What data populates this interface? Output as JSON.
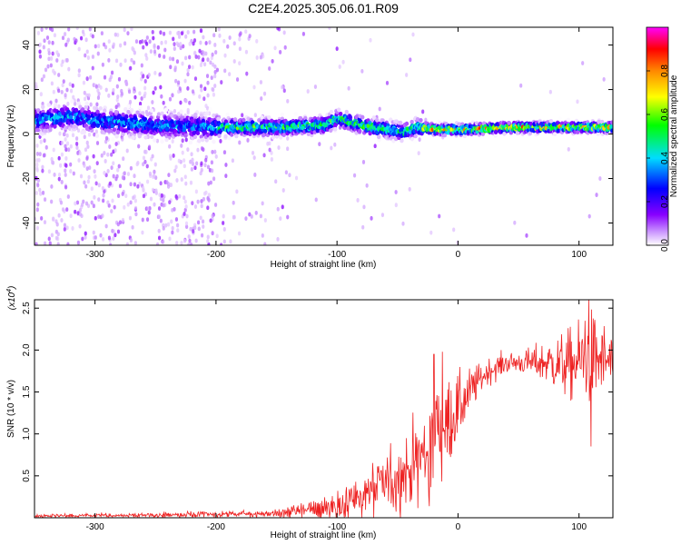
{
  "title": "C2E4.2025.305.06.01.R09",
  "chart_data": [
    {
      "type": "heatmap",
      "title": "C2E4.2025.305.06.01.R09",
      "xlabel": "Height of straight line (km)",
      "ylabel": "Frequency (Hz)",
      "xlim": [
        -350,
        128
      ],
      "ylim": [
        -50,
        48
      ],
      "xticks": [
        -300,
        -200,
        -100,
        0,
        100
      ],
      "xtick_labels": [
        "-300",
        "-200",
        "-100",
        "0",
        "100"
      ],
      "yticks": [
        40,
        20,
        0,
        -20,
        -40
      ],
      "ytick_labels": [
        "40",
        "20",
        "0",
        "-20",
        "-40"
      ],
      "ridge_frequency": [
        [
          -350,
          6
        ],
        [
          -320,
          8
        ],
        [
          -300,
          6
        ],
        [
          -250,
          4
        ],
        [
          -200,
          3
        ],
        [
          -150,
          3
        ],
        [
          -110,
          4
        ],
        [
          -100,
          7
        ],
        [
          -80,
          4
        ],
        [
          -60,
          2
        ],
        [
          -45,
          1
        ],
        [
          -35,
          3
        ],
        [
          -20,
          2
        ],
        [
          0,
          2
        ],
        [
          50,
          3
        ],
        [
          100,
          3
        ],
        [
          128,
          3
        ]
      ],
      "colorbar": {
        "label": "Normalized spectral amplitude",
        "range": [
          0,
          1
        ],
        "ticks": [
          0.0,
          0.2,
          0.4,
          0.6,
          0.8
        ],
        "tick_labels": [
          "0.0",
          "0.2",
          "0.4",
          "0.6",
          "0.8"
        ],
        "colors": [
          "#ffffff",
          "#9900ff",
          "#0000ff",
          "#00ffff",
          "#00ff00",
          "#ffff00",
          "#ff0000",
          "#ff00ff"
        ]
      }
    },
    {
      "type": "line",
      "xlabel": "Height of straight line (km)",
      "ylabel": "SNR (10 * v/v)",
      "y_multiplier_label": "(x10",
      "y_multiplier_exp": "4",
      "y_multiplier_close": ")",
      "xlim": [
        -350,
        128
      ],
      "ylim": [
        0,
        2.6
      ],
      "xticks": [
        -300,
        -200,
        -100,
        0,
        100
      ],
      "xtick_labels": [
        "-300",
        "-200",
        "-100",
        "0",
        "100"
      ],
      "yticks": [
        0.5,
        1.0,
        1.5,
        2.0,
        2.5
      ],
      "ytick_labels": [
        "0.5",
        "1.0",
        "1.5",
        "2.0",
        "2.5"
      ],
      "color": "#ee2222",
      "envelope": [
        [
          -350,
          0.02
        ],
        [
          -250,
          0.03
        ],
        [
          -150,
          0.05
        ],
        [
          -120,
          0.1
        ],
        [
          -100,
          0.15
        ],
        [
          -80,
          0.25
        ],
        [
          -60,
          0.4
        ],
        [
          -40,
          0.6
        ],
        [
          -25,
          0.8
        ],
        [
          -20,
          1.0
        ],
        [
          -15,
          1.15
        ],
        [
          -5,
          1.2
        ],
        [
          5,
          1.4
        ],
        [
          15,
          1.6
        ],
        [
          25,
          1.75
        ],
        [
          40,
          1.85
        ],
        [
          60,
          1.85
        ],
        [
          75,
          1.85
        ],
        [
          90,
          1.82
        ],
        [
          100,
          1.85
        ],
        [
          110,
          1.9
        ],
        [
          128,
          1.85
        ]
      ],
      "noise_sd": [
        [
          -350,
          0.01
        ],
        [
          -150,
          0.02
        ],
        [
          -120,
          0.07
        ],
        [
          -80,
          0.15
        ],
        [
          -50,
          0.2
        ],
        [
          -30,
          0.28
        ],
        [
          -15,
          0.35
        ],
        [
          0,
          0.2
        ],
        [
          20,
          0.08
        ],
        [
          50,
          0.06
        ],
        [
          70,
          0.12
        ],
        [
          90,
          0.2
        ],
        [
          110,
          0.28
        ],
        [
          128,
          0.18
        ]
      ],
      "peaks": [
        [
          -20,
          1.95
        ],
        [
          -13,
          1.98
        ],
        [
          108,
          2.6
        ],
        [
          105,
          2.35
        ],
        [
          110,
          0.85
        ]
      ]
    }
  ]
}
